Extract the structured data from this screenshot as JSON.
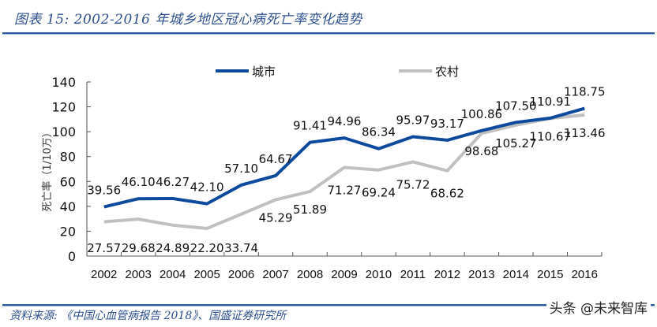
{
  "header": {
    "title": "图表 15:  2002-2016 年城乡地区冠心病死亡率变化趋势"
  },
  "footer": {
    "source": "资料来源:  《中国心血管病报告 2018》、国盛证券研究所",
    "watermark": "头条 @未来智库"
  },
  "chart_data": {
    "type": "line",
    "title": "2002-2016 年城乡地区冠心病死亡率变化趋势",
    "xlabel": "",
    "ylabel": "死亡率（1/10万）",
    "ylim": [
      0,
      140
    ],
    "yticks": [
      0,
      20,
      40,
      60,
      80,
      100,
      120,
      140
    ],
    "grid": false,
    "legend_position": "top",
    "categories": [
      "2002",
      "2003",
      "2004",
      "2005",
      "2006",
      "2007",
      "2008",
      "2009",
      "2010",
      "2011",
      "2012",
      "2013",
      "2014",
      "2015",
      "2016"
    ],
    "series": [
      {
        "name": "城市",
        "color": "#0d4a9e",
        "values": [
          39.56,
          46.1,
          46.27,
          42.1,
          57.1,
          64.67,
          91.41,
          94.96,
          86.34,
          95.97,
          93.17,
          100.86,
          107.5,
          110.91,
          118.75
        ],
        "labels": [
          "39.56",
          "46.10",
          "46.27",
          "42.10",
          "57.10",
          "64.67",
          "91.41",
          "94.96",
          "86.34",
          "95.97",
          "93.17",
          "100.86",
          "107.50",
          "110.91",
          "118.75"
        ]
      },
      {
        "name": "农村",
        "color": "#c0c0c0",
        "values": [
          27.57,
          29.68,
          24.89,
          22.2,
          33.74,
          45.29,
          51.89,
          71.27,
          69.24,
          75.72,
          68.62,
          98.68,
          105.27,
          110.67,
          113.46
        ],
        "labels": [
          "27.57",
          "29.68",
          "24.89",
          "22.20",
          "33.74",
          "45.29",
          "51.89",
          "71.27",
          "69.24",
          "75.72",
          "68.62",
          "98.68",
          "105.27",
          "110.67",
          "113.46"
        ]
      }
    ]
  }
}
